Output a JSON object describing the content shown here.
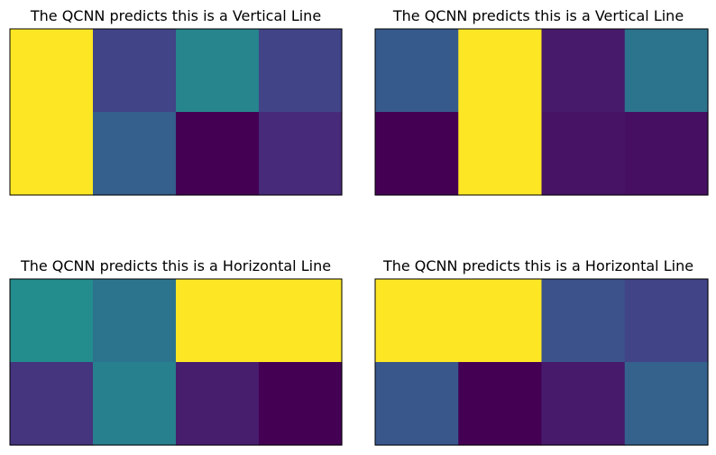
{
  "chart_data": [
    {
      "type": "heatmap",
      "title": "The QCNN predicts this is a Vertical Line",
      "colormap": "viridis",
      "rows": 2,
      "cols": 4,
      "values": [
        [
          1.0,
          0.2,
          0.45,
          0.2
        ],
        [
          1.0,
          0.3,
          0.0,
          0.12
        ]
      ],
      "xticks": false,
      "yticks": false
    },
    {
      "type": "heatmap",
      "title": "The QCNN predicts this is a Vertical Line",
      "colormap": "viridis",
      "rows": 2,
      "cols": 4,
      "values": [
        [
          0.28,
          1.0,
          0.07,
          0.38
        ],
        [
          0.0,
          1.0,
          0.05,
          0.04
        ]
      ],
      "xticks": false,
      "yticks": false
    },
    {
      "type": "heatmap",
      "title": "The QCNN predicts this is a Horizontal Line",
      "colormap": "viridis",
      "rows": 2,
      "cols": 4,
      "values": [
        [
          0.48,
          0.38,
          1.0,
          1.0
        ],
        [
          0.15,
          0.43,
          0.08,
          0.0
        ]
      ],
      "xticks": false,
      "yticks": false
    },
    {
      "type": "heatmap",
      "title": "The QCNN predicts this is a Horizontal Line",
      "colormap": "viridis",
      "rows": 2,
      "cols": 4,
      "values": [
        [
          1.0,
          1.0,
          0.25,
          0.2
        ],
        [
          0.27,
          0.0,
          0.07,
          0.31
        ]
      ],
      "xticks": false,
      "yticks": false
    }
  ]
}
